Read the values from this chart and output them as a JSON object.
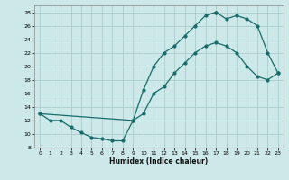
{
  "xlabel": "Humidex (Indice chaleur)",
  "bg_color": "#cce8e8",
  "grid_color": "#aacccc",
  "line_color": "#1a6b6b",
  "xlim": [
    -0.5,
    23.5
  ],
  "ylim": [
    8,
    29
  ],
  "xticks": [
    0,
    1,
    2,
    3,
    4,
    5,
    6,
    7,
    8,
    9,
    10,
    11,
    12,
    13,
    14,
    15,
    16,
    17,
    18,
    19,
    20,
    21,
    22,
    23
  ],
  "yticks": [
    8,
    10,
    12,
    14,
    16,
    18,
    20,
    22,
    24,
    26,
    28
  ],
  "line1_x": [
    0,
    1,
    2,
    3,
    4,
    5,
    6,
    7,
    8,
    9,
    10,
    11,
    12,
    13,
    14,
    15,
    16,
    17,
    18,
    19,
    20,
    21,
    22,
    23
  ],
  "line1_y": [
    13,
    12,
    12,
    11,
    10.2,
    9.5,
    9.3,
    9.0,
    9.0,
    12,
    13,
    16,
    17,
    19,
    20.5,
    22,
    23,
    23.5,
    23,
    22,
    20,
    18.5,
    18,
    19
  ],
  "line2_x": [
    0,
    9,
    10,
    11,
    12,
    13,
    14,
    15,
    16,
    17
  ],
  "line2_y": [
    13,
    12,
    16.5,
    20,
    22,
    23,
    24.5,
    26,
    27.5,
    28
  ],
  "line3_x": [
    17,
    18,
    19,
    20,
    21,
    22,
    23
  ],
  "line3_y": [
    28,
    27,
    27.5,
    27,
    26,
    22,
    19
  ]
}
